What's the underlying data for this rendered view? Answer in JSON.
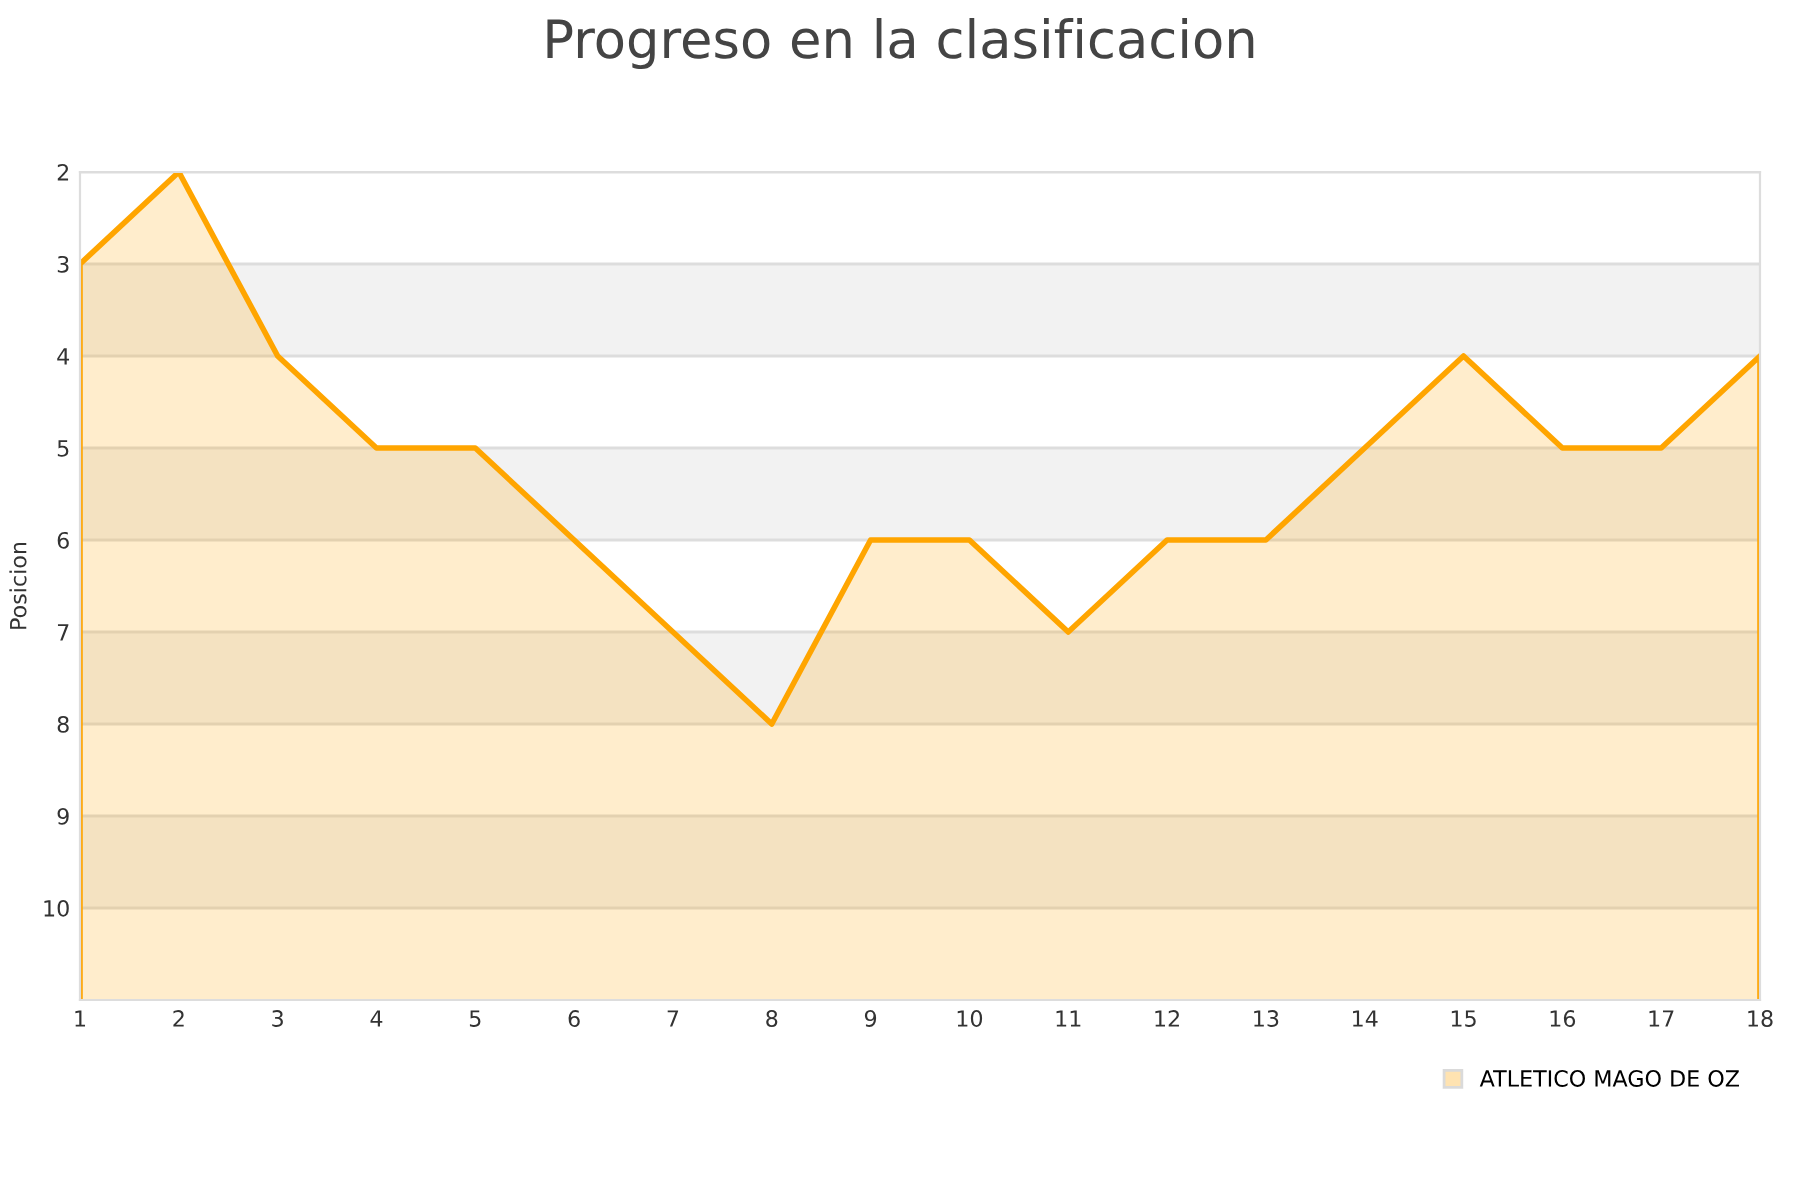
{
  "chart_data": {
    "type": "area",
    "title": "Progreso en la clasificacion",
    "ylabel": "Posicion",
    "x": [
      1,
      2,
      3,
      4,
      5,
      6,
      7,
      8,
      9,
      10,
      11,
      12,
      13,
      14,
      15,
      16,
      17,
      18
    ],
    "series": [
      {
        "name": "ATLETICO MAGO DE OZ",
        "color": "#ffa500",
        "values": [
          3,
          2,
          4,
          5,
          5,
          6,
          7,
          8,
          6,
          6,
          7,
          6,
          6,
          5,
          4,
          5,
          5,
          4
        ]
      }
    ],
    "xlim": [
      1,
      18
    ],
    "xticks": [
      1,
      2,
      3,
      4,
      5,
      6,
      7,
      8,
      9,
      10,
      11,
      12,
      13,
      14,
      15,
      16,
      17,
      18
    ],
    "ylim": [
      11,
      2
    ],
    "yticks": [
      2,
      3,
      4,
      5,
      6,
      7,
      8,
      9,
      10
    ],
    "bands": [
      {
        "axis": "y",
        "from": 3,
        "to": 4,
        "color": "#f2f2f2"
      },
      {
        "axis": "y",
        "from": 5,
        "to": 6,
        "color": "#f2f2f2"
      },
      {
        "axis": "y",
        "from": 7,
        "to": 8,
        "color": "#f2f2f2"
      },
      {
        "axis": "y",
        "from": 9,
        "to": 10,
        "color": "#f2f2f2"
      }
    ],
    "grid": "y",
    "legend": "bottom right"
  }
}
